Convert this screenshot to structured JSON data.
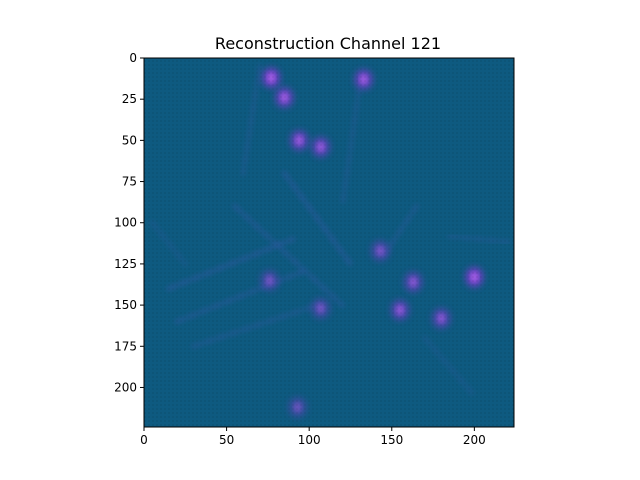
{
  "chart_data": {
    "type": "heatmap",
    "title": "Reconstruction Channel 121",
    "xlabel": "",
    "ylabel": "",
    "xlim": [
      0,
      224
    ],
    "ylim": [
      224,
      0
    ],
    "x_ticks": [
      0,
      50,
      100,
      150,
      200
    ],
    "y_ticks": [
      0,
      25,
      50,
      75,
      100,
      125,
      150,
      175,
      200
    ],
    "grid": false,
    "colors": {
      "background": "#0e5a80",
      "dark": "#0c4c6d",
      "stroke": "#2d5aa3",
      "highlight": "#7040c8",
      "peak": "#a862e8"
    },
    "hotspots": [
      {
        "x": 77,
        "y": 12,
        "v": 0.95
      },
      {
        "x": 85,
        "y": 24,
        "v": 0.85
      },
      {
        "x": 133,
        "y": 13,
        "v": 0.85
      },
      {
        "x": 94,
        "y": 50,
        "v": 0.8
      },
      {
        "x": 107,
        "y": 54,
        "v": 0.75
      },
      {
        "x": 200,
        "y": 133,
        "v": 0.95
      },
      {
        "x": 155,
        "y": 153,
        "v": 0.7
      },
      {
        "x": 163,
        "y": 136,
        "v": 0.65
      },
      {
        "x": 180,
        "y": 158,
        "v": 0.65
      },
      {
        "x": 143,
        "y": 117,
        "v": 0.55
      },
      {
        "x": 93,
        "y": 212,
        "v": 0.45
      },
      {
        "x": 76,
        "y": 135,
        "v": 0.5
      },
      {
        "x": 107,
        "y": 152,
        "v": 0.5
      }
    ],
    "streaks": [
      {
        "x1": 15,
        "y1": 140,
        "x2": 90,
        "y2": 110,
        "v": 0.45
      },
      {
        "x1": 20,
        "y1": 160,
        "x2": 95,
        "y2": 130,
        "v": 0.4
      },
      {
        "x1": 30,
        "y1": 175,
        "x2": 105,
        "y2": 150,
        "v": 0.35
      },
      {
        "x1": 55,
        "y1": 90,
        "x2": 120,
        "y2": 150,
        "v": 0.4
      },
      {
        "x1": 85,
        "y1": 70,
        "x2": 125,
        "y2": 125,
        "v": 0.45
      },
      {
        "x1": 165,
        "y1": 90,
        "x2": 145,
        "y2": 120,
        "v": 0.35
      },
      {
        "x1": 185,
        "y1": 108,
        "x2": 222,
        "y2": 112,
        "v": 0.3
      },
      {
        "x1": 70,
        "y1": 5,
        "x2": 60,
        "y2": 70,
        "v": 0.3
      },
      {
        "x1": 130,
        "y1": 20,
        "x2": 120,
        "y2": 90,
        "v": 0.3
      },
      {
        "x1": 170,
        "y1": 170,
        "x2": 200,
        "y2": 205,
        "v": 0.25
      },
      {
        "x1": 5,
        "y1": 100,
        "x2": 25,
        "y2": 125,
        "v": 0.25
      }
    ]
  }
}
